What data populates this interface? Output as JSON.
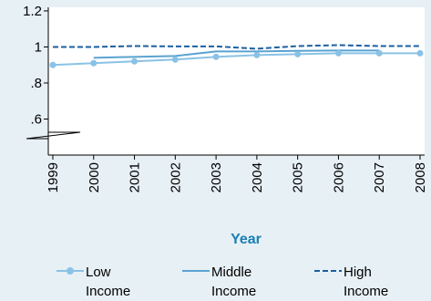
{
  "chart_data": {
    "type": "line",
    "xlabel": "Year",
    "ylabel": "",
    "x": [
      1999,
      2000,
      2001,
      2002,
      2003,
      2004,
      2005,
      2006,
      2007,
      2008
    ],
    "x_tick_labels": [
      "1999",
      "2000",
      "2001",
      "2002",
      "2003",
      "2004",
      "2005",
      "2006",
      "2007",
      "2008"
    ],
    "y_ticks": [
      0.6,
      0.8,
      1,
      1.2
    ],
    "y_tick_labels": [
      ".6",
      ".8",
      "1",
      "1.2"
    ],
    "ylim": [
      0.4,
      1.22
    ],
    "y_axis_break": true,
    "grid": false,
    "legend_position": "bottom",
    "series": [
      {
        "name": "Low Income",
        "name_lines": [
          "Low",
          "Income"
        ],
        "style": "solid-markers",
        "color": "#8ac2e6",
        "values": [
          0.9,
          0.91,
          0.92,
          0.93,
          0.945,
          0.955,
          0.96,
          0.965,
          0.965,
          0.965
        ]
      },
      {
        "name": "Middle Income",
        "name_lines": [
          "Middle",
          "Income"
        ],
        "style": "solid",
        "color": "#5aa3d2",
        "values": [
          null,
          0.94,
          0.945,
          0.95,
          0.975,
          0.975,
          0.978,
          0.98,
          0.98,
          null
        ]
      },
      {
        "name": "High Income",
        "name_lines": [
          "High",
          "Income"
        ],
        "style": "dashed",
        "color": "#1b5fa0",
        "values": [
          1.0,
          1.0,
          1.005,
          1.003,
          1.003,
          0.99,
          1.005,
          1.01,
          1.005,
          1.005
        ]
      }
    ]
  }
}
